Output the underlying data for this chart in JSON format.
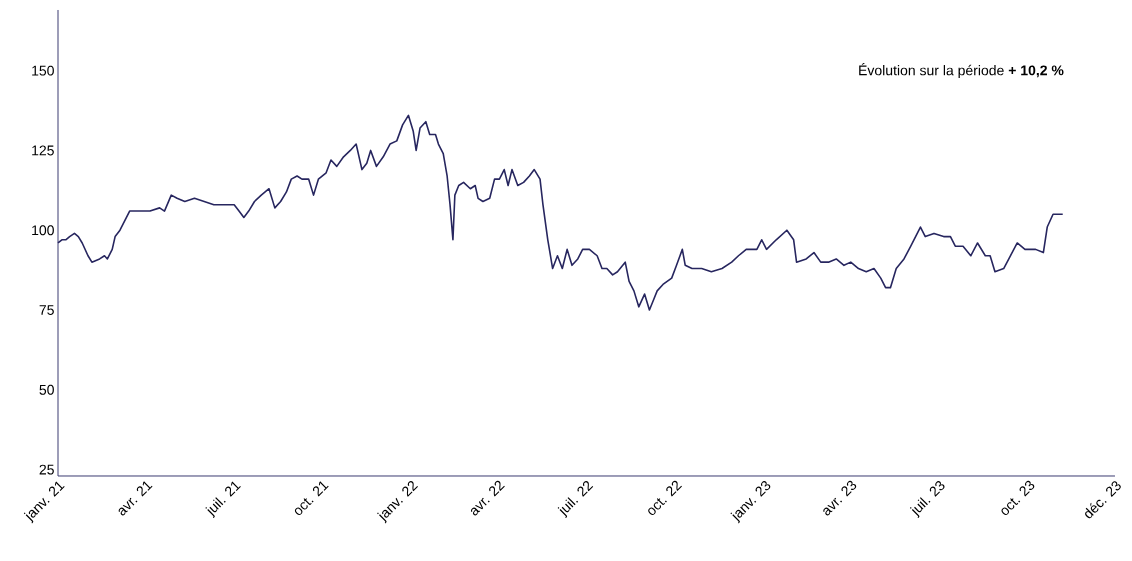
{
  "chart_data": {
    "type": "line",
    "annotations": [
      "Évolution sur la période **+ 10,2 %**"
    ],
    "xlim": [
      "2021-01-01",
      "2023-12-29"
    ],
    "xticks": [
      {
        "value": "2021-01-01",
        "label": "janv. 21"
      },
      {
        "value": "2021-04-02",
        "label": "avr. 21"
      },
      {
        "value": "2021-07-02",
        "label": "juil. 21"
      },
      {
        "value": "2021-10-01",
        "label": "oct. 21"
      },
      {
        "value": "2022-01-01",
        "label": "janv. 22"
      },
      {
        "value": "2022-04-01",
        "label": "avr. 22"
      },
      {
        "value": "2022-07-01",
        "label": "juil. 22"
      },
      {
        "value": "2022-10-01",
        "label": "oct. 22"
      },
      {
        "value": "2023-01-01",
        "label": "janv. 23"
      },
      {
        "value": "2023-03-31",
        "label": "avr. 23"
      },
      {
        "value": "2023-06-30",
        "label": "juil. 23"
      },
      {
        "value": "2023-10-01",
        "label": "oct. 23"
      },
      {
        "value": "2023-12-29",
        "label": "déc. 23"
      }
    ],
    "ylim": [
      23,
      169
    ],
    "yticks": [
      25,
      50,
      75,
      100,
      125,
      150
    ],
    "grid": false,
    "marker": "none",
    "line_style": "solid",
    "series": [
      {
        "color": "#27265f",
        "x": [
          "2021-01-01",
          "2021-01-05",
          "2021-01-09",
          "2021-01-13",
          "2021-01-18",
          "2021-01-22",
          "2021-01-26",
          "2021-02-01",
          "2021-02-05",
          "2021-02-13",
          "2021-02-18",
          "2021-02-21",
          "2021-02-26",
          "2021-03-01",
          "2021-03-06",
          "2021-03-11",
          "2021-03-16",
          "2021-03-21",
          "2021-03-26",
          "2021-04-06",
          "2021-04-16",
          "2021-04-21",
          "2021-04-28",
          "2021-05-04",
          "2021-05-12",
          "2021-05-22",
          "2021-06-01",
          "2021-06-11",
          "2021-06-22",
          "2021-07-02",
          "2021-07-07",
          "2021-07-12",
          "2021-07-17",
          "2021-07-23",
          "2021-07-30",
          "2021-08-07",
          "2021-08-13",
          "2021-08-19",
          "2021-08-25",
          "2021-08-30",
          "2021-09-05",
          "2021-09-10",
          "2021-09-17",
          "2021-09-22",
          "2021-09-27",
          "2021-10-05",
          "2021-10-10",
          "2021-10-16",
          "2021-10-23",
          "2021-10-30",
          "2021-11-05",
          "2021-11-11",
          "2021-11-16",
          "2021-11-20",
          "2021-11-26",
          "2021-12-03",
          "2021-12-10",
          "2021-12-17",
          "2021-12-23",
          "2021-12-29",
          "2022-01-03",
          "2022-01-06",
          "2022-01-10",
          "2022-01-16",
          "2022-01-20",
          "2022-01-26",
          "2022-01-29",
          "2022-02-03",
          "2022-02-07",
          "2022-02-10",
          "2022-02-13",
          "2022-02-15",
          "2022-02-19",
          "2022-02-24",
          "2022-03-03",
          "2022-03-08",
          "2022-03-11",
          "2022-03-16",
          "2022-03-23",
          "2022-03-28",
          "2022-04-02",
          "2022-04-07",
          "2022-04-11",
          "2022-04-15",
          "2022-04-21",
          "2022-04-27",
          "2022-05-03",
          "2022-05-08",
          "2022-05-14",
          "2022-05-17",
          "2022-05-22",
          "2022-05-27",
          "2022-06-01",
          "2022-06-06",
          "2022-06-11",
          "2022-06-16",
          "2022-06-22",
          "2022-06-27",
          "2022-07-04",
          "2022-07-12",
          "2022-07-17",
          "2022-07-22",
          "2022-07-28",
          "2022-08-02",
          "2022-08-10",
          "2022-08-14",
          "2022-08-19",
          "2022-08-24",
          "2022-08-30",
          "2022-09-04",
          "2022-09-08",
          "2022-09-12",
          "2022-09-18",
          "2022-09-27",
          "2022-10-02",
          "2022-10-08",
          "2022-10-11",
          "2022-10-18",
          "2022-10-28",
          "2022-11-07",
          "2022-11-18",
          "2022-11-28",
          "2022-12-05",
          "2022-12-13",
          "2022-12-24",
          "2022-12-29",
          "2023-01-03",
          "2023-01-13",
          "2023-01-24",
          "2023-01-31",
          "2023-02-03",
          "2023-02-13",
          "2023-02-21",
          "2023-02-28",
          "2023-03-08",
          "2023-03-16",
          "2023-03-24",
          "2023-03-31",
          "2023-04-08",
          "2023-04-16",
          "2023-04-24",
          "2023-05-01",
          "2023-05-06",
          "2023-05-11",
          "2023-05-17",
          "2023-05-25",
          "2023-06-01",
          "2023-06-06",
          "2023-06-11",
          "2023-06-16",
          "2023-06-25",
          "2023-07-05",
          "2023-07-12",
          "2023-07-17",
          "2023-07-25",
          "2023-08-02",
          "2023-08-09",
          "2023-08-17",
          "2023-08-22",
          "2023-08-27",
          "2023-09-05",
          "2023-09-12",
          "2023-09-19",
          "2023-09-27",
          "2023-10-08",
          "2023-10-16",
          "2023-10-20",
          "2023-10-26",
          "2023-11-05"
        ],
        "values": [
          96,
          97,
          97,
          98,
          99,
          98,
          96,
          92,
          90,
          91,
          92,
          91,
          94,
          98,
          100,
          103,
          106,
          106,
          106,
          106,
          107,
          106,
          111,
          110,
          109,
          110,
          109,
          108,
          108,
          108,
          106,
          104,
          106,
          109,
          111,
          113,
          107,
          109,
          112,
          116,
          117,
          116,
          116,
          111,
          116,
          118,
          122,
          120,
          123,
          125,
          127,
          119,
          121,
          125,
          120,
          123,
          127,
          128,
          133,
          136,
          131,
          125,
          132,
          134,
          130,
          130,
          127,
          124,
          117,
          108,
          97,
          111,
          114,
          115,
          113,
          114,
          110,
          109,
          110,
          116,
          116,
          119,
          114,
          119,
          114,
          115,
          117,
          119,
          116,
          108,
          97,
          88,
          92,
          88,
          94,
          89,
          91,
          94,
          94,
          92,
          88,
          88,
          86,
          87,
          90,
          84,
          81,
          76,
          80,
          75,
          78,
          81,
          83,
          85,
          89,
          94,
          89,
          88,
          88,
          87,
          88,
          90,
          92,
          94,
          94,
          97,
          94,
          97,
          100,
          97,
          90,
          91,
          93,
          90,
          90,
          91,
          89,
          90,
          88,
          87,
          88,
          85,
          82,
          82,
          88,
          91,
          95,
          98,
          101,
          98,
          99,
          98,
          98,
          95,
          95,
          92,
          96,
          92,
          92,
          87,
          88,
          92,
          96,
          94,
          94,
          93,
          101,
          105,
          105
        ]
      }
    ]
  }
}
